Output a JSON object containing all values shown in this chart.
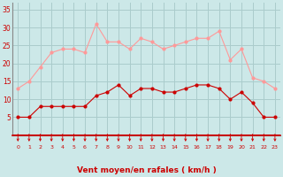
{
  "hours": [
    0,
    1,
    2,
    3,
    4,
    5,
    6,
    7,
    8,
    9,
    10,
    11,
    12,
    13,
    14,
    15,
    16,
    17,
    18,
    19,
    20,
    21,
    22,
    23
  ],
  "wind_mean": [
    5,
    5,
    8,
    8,
    8,
    8,
    8,
    11,
    12,
    14,
    11,
    13,
    13,
    12,
    12,
    13,
    14,
    14,
    13,
    10,
    12,
    9,
    5,
    5
  ],
  "wind_gust": [
    13,
    15,
    19,
    23,
    24,
    24,
    23,
    31,
    26,
    26,
    24,
    27,
    26,
    24,
    25,
    26,
    27,
    27,
    29,
    21,
    24,
    16,
    15,
    13
  ],
  "bg_color": "#cce8e8",
  "grid_color": "#aacccc",
  "mean_color": "#cc0000",
  "gust_color": "#ff9999",
  "arrow_color": "#cc0000",
  "xlabel": "Vent moyen/en rafales ( km/h )",
  "xlabel_color": "#cc0000",
  "tick_color": "#cc0000",
  "spine_color": "#888888",
  "axisline_color": "#cc0000",
  "ylim": [
    0,
    37
  ],
  "yticks": [
    5,
    10,
    15,
    20,
    25,
    30,
    35
  ],
  "xlim": [
    -0.5,
    23.5
  ],
  "figsize": [
    3.2,
    2.0
  ],
  "dpi": 100
}
